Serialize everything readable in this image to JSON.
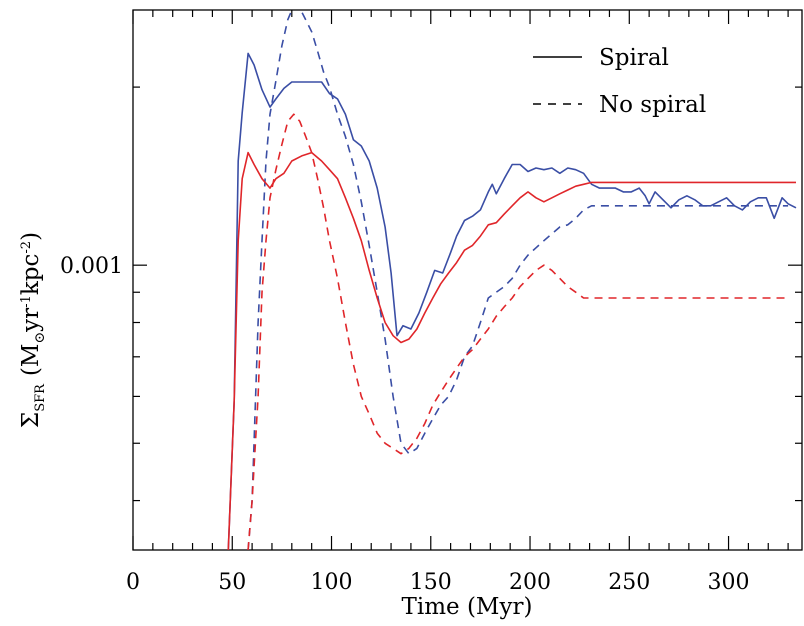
{
  "chart_data": {
    "type": "line",
    "title": "",
    "xlabel": "Time (Myr)",
    "ylabel": {
      "sigma": "Σ",
      "subscript": "SFR",
      "units_open": "(M",
      "sun_symbol": "⊙",
      "units_yr": "yr",
      "exp1": "-1",
      "units_kpc": "kpc",
      "exp2": "-2",
      "units_close": ")"
    },
    "xlim": [
      0,
      337
    ],
    "ylim": [
      0.00033,
      0.0027
    ],
    "yscale": "log",
    "xticks": [
      0,
      50,
      100,
      150,
      200,
      250,
      300
    ],
    "xtick_labels": [
      "0",
      "50",
      "100",
      "150",
      "200",
      "250",
      "300"
    ],
    "yticks": [
      0.001
    ],
    "ytick_labels": [
      "0.001"
    ],
    "legend": {
      "position": "top-right",
      "entries": [
        {
          "label": "Spiral",
          "style": "solid"
        },
        {
          "label": "No spiral",
          "style": "dashed"
        }
      ]
    },
    "colors": {
      "blue": "#3a4ea5",
      "red": "#e0262a",
      "axis": "#000000"
    },
    "series": [
      {
        "color": "blue",
        "style": "solid",
        "x": [
          46,
          48,
          51,
          53,
          55,
          58,
          61,
          65,
          69,
          72,
          76,
          80,
          85,
          90,
          95,
          99,
          103,
          107,
          111,
          115,
          119,
          123,
          127,
          130,
          133,
          136,
          140,
          144,
          148,
          152,
          156,
          160,
          163,
          167,
          171,
          175,
          179,
          181,
          183,
          187,
          191,
          195,
          199,
          203,
          207,
          211,
          215,
          219,
          223,
          227,
          231,
          235,
          239,
          243,
          247,
          251,
          255,
          258,
          260,
          263,
          267,
          271,
          275,
          279,
          283,
          287,
          291,
          295,
          299,
          303,
          307,
          311,
          315,
          319,
          323,
          327,
          330,
          334
        ],
        "y": [
          0.00027,
          0.00033,
          0.00059,
          0.0015,
          0.00181,
          0.00228,
          0.00218,
          0.00198,
          0.00185,
          0.00191,
          0.00199,
          0.00204,
          0.00204,
          0.00204,
          0.00204,
          0.00195,
          0.00191,
          0.0018,
          0.00163,
          0.00159,
          0.0015,
          0.00135,
          0.00116,
          0.00097,
          0.00076,
          0.00079,
          0.00078,
          0.00083,
          0.0009,
          0.00098,
          0.00097,
          0.00105,
          0.00112,
          0.00119,
          0.00121,
          0.00124,
          0.00133,
          0.00137,
          0.00132,
          0.0014,
          0.00148,
          0.00148,
          0.00144,
          0.00146,
          0.00145,
          0.00146,
          0.00143,
          0.00146,
          0.00145,
          0.00143,
          0.00137,
          0.00135,
          0.00135,
          0.00135,
          0.00133,
          0.00133,
          0.00135,
          0.00131,
          0.00127,
          0.00133,
          0.00129,
          0.00125,
          0.00129,
          0.00131,
          0.00129,
          0.00126,
          0.00126,
          0.00128,
          0.0013,
          0.00126,
          0.00124,
          0.00128,
          0.0013,
          0.0013,
          0.0012,
          0.0013,
          0.00127,
          0.00125
        ]
      },
      {
        "color": "blue",
        "style": "dashed",
        "x": [
          58,
          60,
          63,
          65,
          67,
          69,
          72,
          75,
          78,
          81,
          84,
          87,
          90,
          93,
          96,
          99,
          103,
          107,
          111,
          115,
          119,
          123,
          127,
          131,
          135,
          139,
          143,
          147,
          151,
          155,
          159,
          163,
          167,
          171,
          175,
          179,
          183,
          187,
          191,
          195,
          199,
          203,
          207,
          211,
          215,
          219,
          223,
          227,
          231,
          235,
          239,
          243,
          247,
          251,
          255,
          259,
          263,
          267,
          271,
          275,
          279,
          283,
          287,
          291,
          295,
          299,
          303,
          307,
          311,
          315,
          319,
          323,
          327,
          330
        ],
        "y": [
          0.00033,
          0.0004,
          0.0008,
          0.0011,
          0.0015,
          0.0018,
          0.00205,
          0.00235,
          0.0026,
          0.00275,
          0.00272,
          0.0026,
          0.00248,
          0.0023,
          0.00212,
          0.002,
          0.0018,
          0.00165,
          0.00148,
          0.00128,
          0.00108,
          0.0009,
          0.00075,
          0.0006,
          0.0005,
          0.00048,
          0.00049,
          0.00052,
          0.00055,
          0.00058,
          0.0006,
          0.00064,
          0.0007,
          0.00073,
          0.0008,
          0.00088,
          0.0009,
          0.00092,
          0.00095,
          0.001,
          0.00104,
          0.00107,
          0.0011,
          0.00113,
          0.00116,
          0.00117,
          0.0012,
          0.00124,
          0.00126,
          0.00126,
          0.00126,
          0.00126,
          0.00126,
          0.00126,
          0.00126,
          0.00126,
          0.00126,
          0.00126,
          0.00126,
          0.00126,
          0.00126,
          0.00126,
          0.00126,
          0.00126,
          0.00126,
          0.00126,
          0.00126,
          0.00126,
          0.00126,
          0.00126,
          0.00126,
          0.00126,
          0.00126,
          0.00126
        ]
      },
      {
        "color": "red",
        "style": "solid",
        "x": [
          46,
          48,
          51,
          53,
          55,
          58,
          61,
          65,
          69,
          72,
          76,
          80,
          85,
          90,
          95,
          99,
          103,
          107,
          111,
          115,
          119,
          123,
          127,
          131,
          135,
          139,
          143,
          147,
          151,
          155,
          159,
          163,
          167,
          171,
          175,
          179,
          183,
          187,
          191,
          195,
          199,
          203,
          207,
          211,
          215,
          219,
          223,
          227,
          231,
          235,
          239,
          243,
          247,
          251,
          255,
          259,
          263,
          267,
          271,
          275,
          279,
          283,
          287,
          291,
          295,
          299,
          303,
          307,
          311,
          315,
          319,
          323,
          327,
          331,
          334
        ],
        "y": [
          0.00027,
          0.00033,
          0.00059,
          0.0011,
          0.0014,
          0.00155,
          0.00148,
          0.0014,
          0.00135,
          0.0014,
          0.00143,
          0.0015,
          0.00153,
          0.00155,
          0.0015,
          0.00145,
          0.0014,
          0.0013,
          0.0012,
          0.0011,
          0.00098,
          0.00088,
          0.0008,
          0.00076,
          0.00074,
          0.00075,
          0.00078,
          0.00083,
          0.00088,
          0.00093,
          0.00097,
          0.00101,
          0.00106,
          0.00108,
          0.00112,
          0.00117,
          0.00118,
          0.00122,
          0.00126,
          0.0013,
          0.00133,
          0.0013,
          0.00128,
          0.0013,
          0.00132,
          0.00134,
          0.00136,
          0.00137,
          0.00138,
          0.00138,
          0.00138,
          0.00138,
          0.00138,
          0.00138,
          0.00138,
          0.00138,
          0.00138,
          0.00138,
          0.00138,
          0.00138,
          0.00138,
          0.00138,
          0.00138,
          0.00138,
          0.00138,
          0.00138,
          0.00138,
          0.00138,
          0.00138,
          0.00138,
          0.00138,
          0.00138,
          0.00138,
          0.00138,
          0.00138
        ]
      },
      {
        "color": "red",
        "style": "dashed",
        "x": [
          58,
          60,
          63,
          65,
          67,
          69,
          72,
          75,
          78,
          81,
          84,
          87,
          90,
          93,
          96,
          99,
          103,
          107,
          111,
          115,
          119,
          123,
          127,
          131,
          135,
          139,
          143,
          147,
          151,
          155,
          159,
          163,
          167,
          171,
          175,
          179,
          183,
          187,
          191,
          195,
          199,
          203,
          207,
          211,
          215,
          219,
          223,
          227,
          231,
          235,
          239,
          243,
          247,
          251,
          255,
          259,
          263,
          267,
          271,
          275,
          279,
          283,
          287,
          291,
          295,
          299,
          303,
          307,
          311,
          315,
          319,
          323,
          327,
          330
        ],
        "y": [
          0.00033,
          0.0004,
          0.0006,
          0.0009,
          0.0011,
          0.0013,
          0.00145,
          0.0016,
          0.00175,
          0.0018,
          0.00175,
          0.00165,
          0.00155,
          0.0014,
          0.00125,
          0.0011,
          0.00095,
          0.0008,
          0.00068,
          0.0006,
          0.00056,
          0.00052,
          0.0005,
          0.00049,
          0.00048,
          0.00049,
          0.00051,
          0.00054,
          0.00058,
          0.00061,
          0.00064,
          0.00067,
          0.0007,
          0.00072,
          0.00075,
          0.00078,
          0.00082,
          0.00085,
          0.00088,
          0.00092,
          0.00095,
          0.00098,
          0.001,
          0.00098,
          0.00095,
          0.00092,
          0.0009,
          0.00088,
          0.00088,
          0.00088,
          0.00088,
          0.00088,
          0.00088,
          0.00088,
          0.00088,
          0.00088,
          0.00088,
          0.00088,
          0.00088,
          0.00088,
          0.00088,
          0.00088,
          0.00088,
          0.00088,
          0.00088,
          0.00088,
          0.00088,
          0.00088,
          0.00088,
          0.00088,
          0.00088,
          0.00088,
          0.00088,
          0.00088
        ]
      }
    ]
  }
}
